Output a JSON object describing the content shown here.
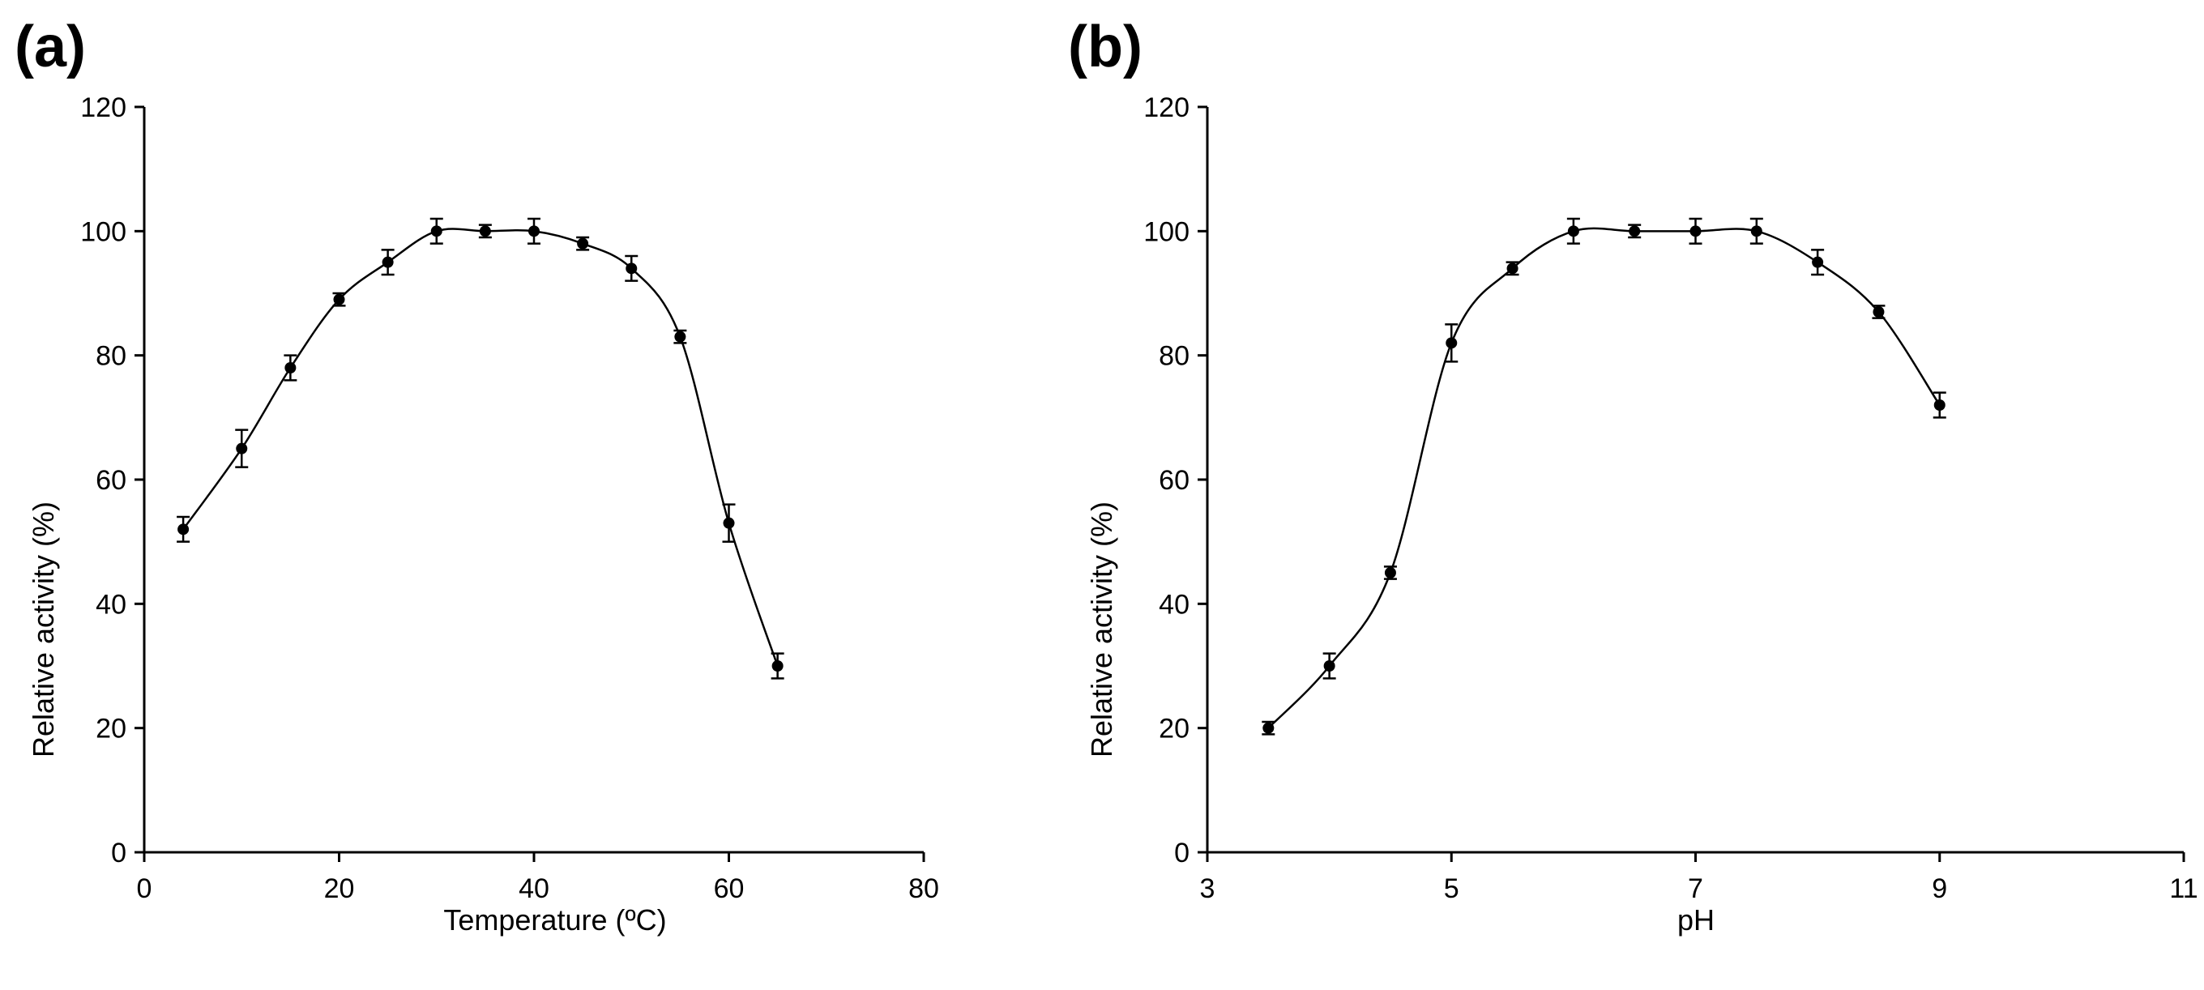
{
  "chart_data": [
    {
      "type": "line",
      "panel_label": "(a)",
      "title": "",
      "xlabel": "Temperature (ºC)",
      "ylabel": "Relative activity (%)",
      "xlim": [
        0,
        80
      ],
      "ylim": [
        0,
        120
      ],
      "xticks": [
        "0",
        "20",
        "40",
        "60",
        "80"
      ],
      "yticks": [
        "0",
        "20",
        "40",
        "60",
        "80",
        "100",
        "120"
      ],
      "grid": false,
      "series": [
        {
          "name": "Relative activity",
          "x": [
            4,
            10,
            15,
            20,
            25,
            30,
            35,
            40,
            45,
            50,
            55,
            60,
            65
          ],
          "y": [
            52,
            65,
            78,
            89,
            95,
            100,
            100,
            100,
            98,
            94,
            83,
            53,
            30
          ],
          "error": [
            2,
            3,
            2,
            1,
            2,
            2,
            1,
            2,
            1,
            2,
            1,
            3,
            2
          ]
        }
      ]
    },
    {
      "type": "line",
      "panel_label": "(b)",
      "title": "",
      "xlabel": "pH",
      "ylabel": "Relative activity (%)",
      "xlim": [
        3,
        11
      ],
      "ylim": [
        0,
        120
      ],
      "xticks": [
        "3",
        "5",
        "7",
        "9",
        "11"
      ],
      "yticks": [
        "0",
        "20",
        "40",
        "60",
        "80",
        "100",
        "120"
      ],
      "grid": false,
      "series": [
        {
          "name": "Relative activity",
          "x": [
            3.5,
            4,
            4.5,
            5,
            5.5,
            6,
            6.5,
            7,
            7.5,
            8,
            8.5,
            9
          ],
          "y": [
            20,
            30,
            45,
            82,
            94,
            100,
            100,
            100,
            100,
            95,
            87,
            72
          ],
          "error": [
            1,
            2,
            1,
            3,
            1,
            2,
            1,
            2,
            2,
            2,
            1,
            2
          ]
        }
      ]
    }
  ]
}
